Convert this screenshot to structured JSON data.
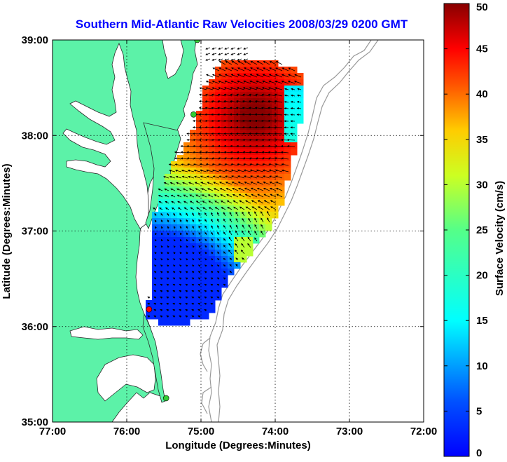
{
  "title": "Southern Mid-Atlantic Raw Velocities 2008/03/29 0200 GMT",
  "xaxis": {
    "label": "Longitude (Degrees:Minutes)",
    "ticks": [
      "77:00",
      "76:00",
      "75:00",
      "74:00",
      "73:00",
      "72:00"
    ]
  },
  "yaxis": {
    "label": "Latitude (Degrees:Minutes)",
    "ticks": [
      "39:00",
      "38:00",
      "37:00",
      "36:00",
      "35:00"
    ]
  },
  "colorbar": {
    "label": "Surface Velocity (cm/s)",
    "ticks": [
      "50",
      "45",
      "40",
      "35",
      "30",
      "25",
      "20",
      "15",
      "10",
      "5",
      "0"
    ],
    "range": [
      0,
      50
    ],
    "colormap": "jet"
  },
  "map": {
    "extent": {
      "lon_west": -77,
      "lon_east": -72,
      "lat_south": 35,
      "lat_north": 39
    },
    "land_color": "#5cf2a8",
    "water_color": "#ffffff",
    "bathymetry_color": "#999999",
    "grid": "dotted",
    "stations": [
      {
        "name": "station-north",
        "color": "#33cc33",
        "lon": -75.05,
        "lat": 39.0
      },
      {
        "name": "station-mid",
        "color": "#33cc33",
        "lon": -75.1,
        "lat": 38.22
      },
      {
        "name": "station-south",
        "color": "#ff0000",
        "lon": -75.7,
        "lat": 36.18
      },
      {
        "name": "station-hatteras",
        "color": "#33cc33",
        "lon": -75.47,
        "lat": 35.25
      }
    ]
  }
}
